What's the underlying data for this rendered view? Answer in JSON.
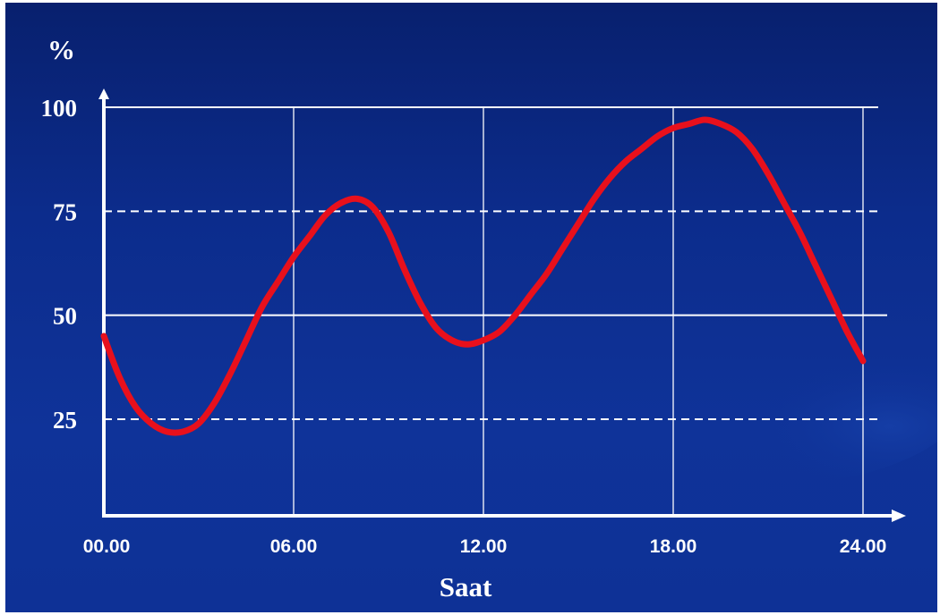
{
  "chart_data": {
    "type": "line",
    "title": "",
    "ylabel": "%",
    "xlabel": "Saat",
    "x_ticks": [
      "00.00",
      "06.00",
      "12.00",
      "18.00",
      "24.00"
    ],
    "y_ticks": [
      "25",
      "50",
      "75",
      "100"
    ],
    "xlim": [
      0,
      24
    ],
    "ylim": [
      0,
      100
    ],
    "grid": true,
    "colors": {
      "line": "#e8101c",
      "grid": "#ffffff",
      "axis": "#ffffff"
    },
    "series": [
      {
        "x": [
          0,
          0.5,
          1,
          1.5,
          2,
          2.5,
          3,
          3.5,
          4,
          4.5,
          5,
          5.5,
          6,
          6.5,
          7,
          7.5,
          8,
          8.5,
          9,
          9.5,
          10,
          10.5,
          11,
          11.5,
          12,
          12.5,
          13,
          13.5,
          14,
          14.5,
          15,
          15.5,
          16,
          16.5,
          17,
          17.5,
          18,
          18.5,
          19,
          19.5,
          20,
          20.5,
          21,
          21.5,
          22,
          22.5,
          23,
          23.5,
          24
        ],
        "y": [
          45,
          35,
          28,
          24,
          22,
          22,
          24,
          29,
          36,
          44,
          52,
          58,
          64,
          69,
          74,
          77,
          78,
          76,
          70,
          61,
          53,
          47,
          44,
          43,
          44,
          46,
          50,
          55,
          60,
          66,
          72,
          78,
          83,
          87,
          90,
          93,
          95,
          96,
          97,
          96,
          94,
          90,
          84,
          77,
          70,
          62,
          54,
          46,
          39
        ]
      }
    ]
  }
}
